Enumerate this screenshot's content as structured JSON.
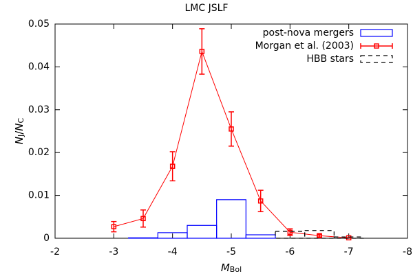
{
  "chart_data": {
    "type": "combo",
    "title": "LMC JSLF",
    "xlabel_parts": [
      "M",
      "Bol"
    ],
    "ylabel_parts": [
      "N",
      "J",
      "/N",
      "C"
    ],
    "xlim": [
      -2,
      -8
    ],
    "xticks": [
      -2,
      -3,
      -4,
      -5,
      -6,
      -7,
      -8
    ],
    "ylim": [
      0,
      0.05
    ],
    "yticks": [
      0,
      0.01,
      0.02,
      0.03,
      0.04,
      0.05
    ],
    "legend": "upper right",
    "series": [
      {
        "name": "post-nova mergers",
        "type": "histogram",
        "color": "#0000ff",
        "dashed": false,
        "bins": [
          -3.25,
          -3.75,
          -4.25,
          -4.75,
          -5.25,
          -5.75
        ],
        "values": [
          0.0001,
          0.0013,
          0.003,
          0.009,
          0.0008
        ]
      },
      {
        "name": "Morgan et al. (2003)",
        "type": "line",
        "color": "#ff0000",
        "x": [
          -3,
          -3.5,
          -4,
          -4.5,
          -5,
          -5.5,
          -6,
          -6.5,
          -7
        ],
        "values": [
          0.0027,
          0.0046,
          0.0168,
          0.0436,
          0.0255,
          0.0087,
          0.0014,
          0.0006,
          0.0001
        ],
        "errors": [
          0.0012,
          0.002,
          0.0034,
          0.0053,
          0.004,
          0.0025,
          0.0008,
          0.0003,
          0
        ]
      },
      {
        "name": "HBB stars",
        "type": "histogram",
        "color": "#000000",
        "dashed": true,
        "bins": [
          -5.75,
          -6.25,
          -6.75,
          -7.25
        ],
        "values": [
          0.0016,
          0.0018,
          0.0003
        ]
      }
    ]
  }
}
